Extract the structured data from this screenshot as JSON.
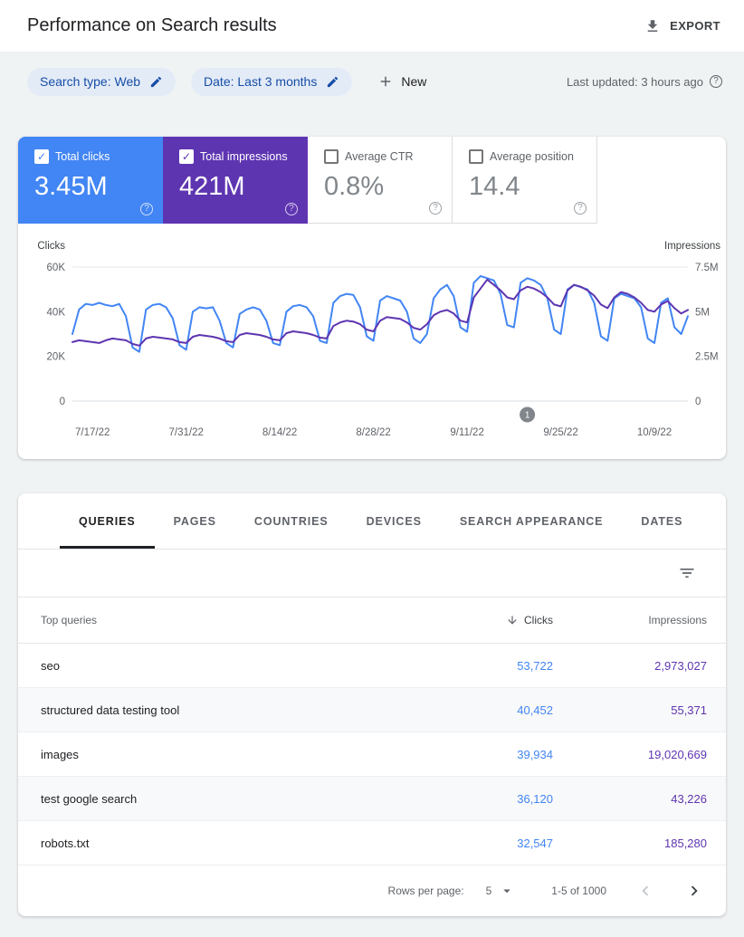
{
  "header": {
    "title": "Performance on Search results",
    "export_label": "EXPORT"
  },
  "filters": {
    "chips": [
      {
        "label": "Search type: Web"
      },
      {
        "label": "Date: Last 3 months"
      }
    ],
    "new_label": "New",
    "last_updated": "Last updated: 3 hours ago"
  },
  "metrics": {
    "tiles": [
      {
        "id": "total-clicks",
        "label": "Total clicks",
        "value": "3.45M",
        "checked": true,
        "color": "#4285f4"
      },
      {
        "id": "total-impressions",
        "label": "Total impressions",
        "value": "421M",
        "checked": true,
        "color": "#5e35b1"
      },
      {
        "id": "average-ctr",
        "label": "Average CTR",
        "value": "0.8%",
        "checked": false
      },
      {
        "id": "average-position",
        "label": "Average position",
        "value": "14.4",
        "checked": false
      }
    ]
  },
  "chart_data": {
    "type": "line",
    "left_axis": {
      "label": "Clicks",
      "max": 60000,
      "ticks": [
        "60K",
        "40K",
        "20K",
        "0"
      ]
    },
    "right_axis": {
      "label": "Impressions",
      "max": 7500000,
      "ticks": [
        "7.5M",
        "5M",
        "2.5M",
        "0"
      ]
    },
    "x_ticks": [
      "7/17/22",
      "7/31/22",
      "8/14/22",
      "8/28/22",
      "9/11/22",
      "9/25/22",
      "10/9/22"
    ],
    "x_tick_indices": [
      3,
      17,
      31,
      45,
      59,
      73,
      87
    ],
    "annotation": {
      "label": "1",
      "index": 68
    },
    "grid": "top-and-bottom-lines-only",
    "series": [
      {
        "name": "Clicks",
        "color": "#4285f4",
        "axis": "left",
        "values": [
          30000,
          41000,
          43500,
          43000,
          44000,
          43000,
          42500,
          43500,
          38000,
          24000,
          22000,
          41000,
          43000,
          43500,
          42000,
          37000,
          25000,
          23000,
          40000,
          42000,
          41500,
          42000,
          36000,
          26000,
          24000,
          39000,
          41000,
          42000,
          41000,
          36000,
          26000,
          25000,
          40000,
          42500,
          43000,
          42000,
          38000,
          27000,
          26000,
          44000,
          47000,
          48000,
          47500,
          42000,
          29000,
          27000,
          45000,
          47000,
          46000,
          45000,
          40000,
          28000,
          26000,
          30000,
          46000,
          50000,
          52000,
          47000,
          33000,
          31000,
          53000,
          56000,
          55000,
          54000,
          48000,
          34000,
          33000,
          53000,
          55000,
          54000,
          52000,
          46000,
          32000,
          30000,
          50000,
          52000,
          51000,
          50000,
          44000,
          29000,
          27000,
          46000,
          48000,
          47000,
          46000,
          42000,
          28000,
          26000,
          44000,
          46000,
          33000,
          30000,
          38000
        ]
      },
      {
        "name": "Impressions",
        "color": "#5e35b1",
        "axis": "right",
        "values": [
          3300000,
          3400000,
          3350000,
          3300000,
          3250000,
          3400000,
          3500000,
          3450000,
          3400000,
          3200000,
          3100000,
          3500000,
          3600000,
          3550000,
          3500000,
          3450000,
          3300000,
          3250000,
          3600000,
          3700000,
          3650000,
          3600000,
          3500000,
          3350000,
          3300000,
          3700000,
          3800000,
          3750000,
          3700000,
          3600000,
          3450000,
          3400000,
          3800000,
          3900000,
          3850000,
          3800000,
          3700000,
          3550000,
          3500000,
          4200000,
          4400000,
          4500000,
          4450000,
          4300000,
          4000000,
          3900000,
          4500000,
          4700000,
          4650000,
          4600000,
          4400000,
          4100000,
          4000000,
          4300000,
          4800000,
          5000000,
          5100000,
          4900000,
          4500000,
          4400000,
          5800000,
          6300000,
          6800000,
          6500000,
          6200000,
          5800000,
          5700000,
          6200000,
          6400000,
          6300000,
          6100000,
          5800000,
          5400000,
          5300000,
          6200000,
          6500000,
          6400000,
          6200000,
          5900000,
          5400000,
          5200000,
          5800000,
          6100000,
          6000000,
          5800000,
          5500000,
          5100000,
          5000000,
          5400000,
          5600000,
          5200000,
          4900000,
          5100000
        ]
      }
    ]
  },
  "table": {
    "tabs": [
      {
        "label": "QUERIES",
        "active": true
      },
      {
        "label": "PAGES",
        "active": false
      },
      {
        "label": "COUNTRIES",
        "active": false
      },
      {
        "label": "DEVICES",
        "active": false
      },
      {
        "label": "SEARCH APPEARANCE",
        "active": false
      },
      {
        "label": "DATES",
        "active": false
      }
    ],
    "columns": {
      "dimension": "Top queries",
      "clicks": "Clicks",
      "impressions": "Impressions",
      "sorted_by": "clicks-descending"
    },
    "rows": [
      {
        "query": "seo",
        "clicks": "53,722",
        "impressions": "2,973,027"
      },
      {
        "query": "structured data testing tool",
        "clicks": "40,452",
        "impressions": "55,371"
      },
      {
        "query": "images",
        "clicks": "39,934",
        "impressions": "19,020,669"
      },
      {
        "query": "test google search",
        "clicks": "36,120",
        "impressions": "43,226"
      },
      {
        "query": "robots.txt",
        "clicks": "32,547",
        "impressions": "185,280"
      }
    ],
    "pagination": {
      "rows_per_page_label": "Rows per page:",
      "rows_per_page": "5",
      "range": "1-5 of 1000"
    }
  },
  "colors": {
    "clicks": "#4285f4",
    "impressions": "#5e35b1",
    "page_background": "#f0f3f4"
  }
}
